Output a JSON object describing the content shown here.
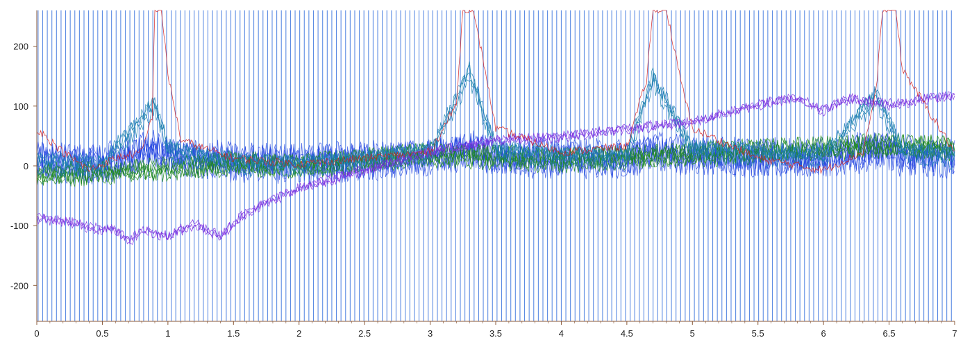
{
  "chart_data": {
    "type": "line",
    "title": "",
    "xlabel": "",
    "ylabel": "",
    "xlim": [
      0,
      7
    ],
    "ylim": [
      -260,
      260
    ],
    "grid": false,
    "legend": "none",
    "x_ticks": [
      {
        "value": 0,
        "label": "0"
      },
      {
        "value": 0.5,
        "label": "0.5"
      },
      {
        "value": 1,
        "label": "1"
      },
      {
        "value": 1.5,
        "label": "1.5"
      },
      {
        "value": 2,
        "label": "2"
      },
      {
        "value": 2.5,
        "label": "2.5"
      },
      {
        "value": 3,
        "label": "3"
      },
      {
        "value": 3.5,
        "label": "3.5"
      },
      {
        "value": 4,
        "label": "4"
      },
      {
        "value": 4.5,
        "label": "4.5"
      },
      {
        "value": 5,
        "label": "5"
      },
      {
        "value": 5.5,
        "label": "5.5"
      },
      {
        "value": 6,
        "label": "6"
      },
      {
        "value": 6.5,
        "label": "6.5"
      },
      {
        "value": 7,
        "label": "7"
      }
    ],
    "y_ticks": [
      {
        "value": 200,
        "label": "200"
      },
      {
        "value": 100,
        "label": "100"
      },
      {
        "value": 0,
        "label": "0"
      },
      {
        "value": -100,
        "label": "-100"
      },
      {
        "value": -200,
        "label": "-200"
      }
    ],
    "series_colors": {
      "pulse_train": "#4a7fe0",
      "blue": "#1f3fe0",
      "purple": "#7a2ee0",
      "red": "#d42020",
      "green": "#1f8a1f",
      "teal": "#1a7fae"
    },
    "series": [
      {
        "color": "#4a7fe0",
        "kind": "pulse-train",
        "pulse_period": 0.035,
        "amplitude": [
          -260,
          260
        ],
        "note_bg_band": [
          -95,
          50
        ]
      },
      {
        "color": "#d42020",
        "kind": "spike-trace",
        "spike_centers": [
          0.92,
          3.3,
          4.72,
          6.45
        ],
        "x": [
          0,
          0.2,
          0.4,
          0.6,
          0.8,
          0.88,
          0.9,
          0.95,
          1.0,
          1.1,
          1.5,
          2.0,
          2.5,
          3.0,
          3.2,
          3.25,
          3.32,
          3.4,
          3.5,
          4.0,
          4.5,
          4.65,
          4.7,
          4.8,
          4.9,
          5.0,
          5.5,
          6.0,
          6.3,
          6.4,
          6.45,
          6.55,
          6.6,
          7.0
        ],
        "y": [
          60,
          20,
          -10,
          10,
          20,
          80,
          260,
          260,
          150,
          40,
          10,
          0,
          10,
          20,
          100,
          260,
          260,
          180,
          60,
          20,
          30,
          140,
          260,
          260,
          150,
          60,
          10,
          -10,
          20,
          120,
          260,
          260,
          160,
          20
        ]
      },
      {
        "color": "#7a2ee0",
        "kind": "baseline-drift",
        "x": [
          0,
          0.2,
          0.4,
          0.6,
          0.7,
          0.8,
          1.0,
          1.2,
          1.4,
          1.6,
          2.0,
          2.5,
          3.0,
          3.5,
          4.0,
          4.5,
          5.0,
          5.5,
          5.8,
          6.0,
          6.2,
          6.5,
          6.8,
          7.0
        ],
        "y": [
          -90,
          -95,
          -105,
          -110,
          -130,
          -110,
          -120,
          -100,
          -120,
          -80,
          -40,
          -10,
          20,
          40,
          45,
          60,
          70,
          100,
          110,
          90,
          110,
          100,
          110,
          115
        ]
      },
      {
        "color": "#1f8a1f",
        "kind": "noise",
        "x": [
          0,
          0.5,
          1.0,
          1.5,
          2.0,
          2.5,
          3.0,
          3.5,
          4.0,
          4.5,
          5.0,
          5.5,
          6.0,
          6.5,
          7.0
        ],
        "y": [
          -20,
          -15,
          -10,
          0,
          -5,
          5,
          15,
          10,
          5,
          10,
          15,
          20,
          25,
          30,
          25
        ]
      },
      {
        "color": "#1a7fae",
        "kind": "noise-with-bumps",
        "x": [
          0,
          0.5,
          0.9,
          1.0,
          1.5,
          2.0,
          2.5,
          3.0,
          3.3,
          3.5,
          4.0,
          4.5,
          4.7,
          5.0,
          5.5,
          6.0,
          6.4,
          6.6,
          7.0
        ],
        "y": [
          0,
          -5,
          100,
          20,
          0,
          -5,
          5,
          15,
          150,
          20,
          10,
          10,
          140,
          20,
          15,
          10,
          110,
          20,
          10
        ]
      }
    ]
  }
}
